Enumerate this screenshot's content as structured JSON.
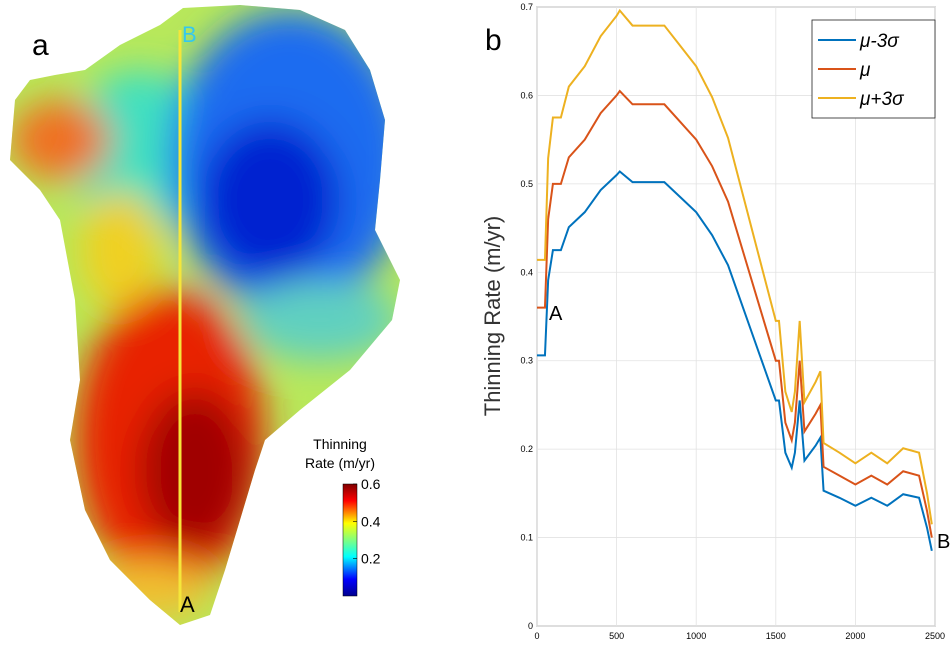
{
  "chart_data": [
    {
      "type": "map",
      "panel_label": "a",
      "colorbar_title": [
        "Thinning",
        "Rate (m/yr)"
      ],
      "clim": [
        0,
        0.6
      ],
      "colorbar_ticks": [
        0.2,
        0.4,
        0.6
      ],
      "annotations": [
        "A",
        "B"
      ]
    },
    {
      "type": "line",
      "panel_label": "b",
      "ylabel": "Thinning Rate (m/yr)",
      "xlim": [
        0,
        2500
      ],
      "xticks": [
        0,
        500,
        1000,
        1500,
        2000,
        2500
      ],
      "ylim": [
        0,
        0.7
      ],
      "yticks": [
        0,
        0.1,
        0.2,
        0.3,
        0.4,
        0.5,
        0.6,
        0.7
      ],
      "grid": true,
      "legend": "upper right",
      "annotations": [
        "A",
        "B"
      ],
      "x": [
        0,
        50,
        70,
        100,
        150,
        200,
        300,
        400,
        500,
        520,
        600,
        700,
        800,
        900,
        1000,
        1100,
        1200,
        1300,
        1400,
        1500,
        1520,
        1560,
        1600,
        1620,
        1650,
        1680,
        1750,
        1780,
        1800,
        1900,
        2000,
        2100,
        2200,
        2300,
        2400,
        2450,
        2480
      ],
      "series": [
        {
          "name": "μ-3σ",
          "color": "#0072bd",
          "values": [
            0.306,
            0.306,
            0.391,
            0.425,
            0.425,
            0.451,
            0.468,
            0.493,
            0.51,
            0.514,
            0.502,
            0.502,
            0.502,
            0.485,
            0.468,
            0.442,
            0.408,
            0.357,
            0.306,
            0.255,
            0.255,
            0.196,
            0.179,
            0.196,
            0.255,
            0.187,
            0.204,
            0.213,
            0.153,
            0.145,
            0.136,
            0.145,
            0.136,
            0.149,
            0.145,
            0.111,
            0.085
          ]
        },
        {
          "name": "μ",
          "color": "#d95319",
          "values": [
            0.36,
            0.36,
            0.46,
            0.5,
            0.5,
            0.53,
            0.55,
            0.58,
            0.6,
            0.605,
            0.59,
            0.59,
            0.59,
            0.57,
            0.55,
            0.52,
            0.48,
            0.42,
            0.36,
            0.3,
            0.3,
            0.23,
            0.21,
            0.23,
            0.3,
            0.22,
            0.24,
            0.25,
            0.18,
            0.17,
            0.16,
            0.17,
            0.16,
            0.175,
            0.17,
            0.13,
            0.1
          ]
        },
        {
          "name": "μ+3σ",
          "color": "#edb120",
          "values": [
            0.414,
            0.414,
            0.529,
            0.575,
            0.575,
            0.61,
            0.633,
            0.667,
            0.69,
            0.696,
            0.679,
            0.679,
            0.679,
            0.656,
            0.633,
            0.598,
            0.552,
            0.483,
            0.414,
            0.345,
            0.345,
            0.265,
            0.242,
            0.265,
            0.345,
            0.253,
            0.276,
            0.288,
            0.207,
            0.196,
            0.184,
            0.196,
            0.184,
            0.201,
            0.196,
            0.15,
            0.115
          ]
        }
      ]
    }
  ]
}
